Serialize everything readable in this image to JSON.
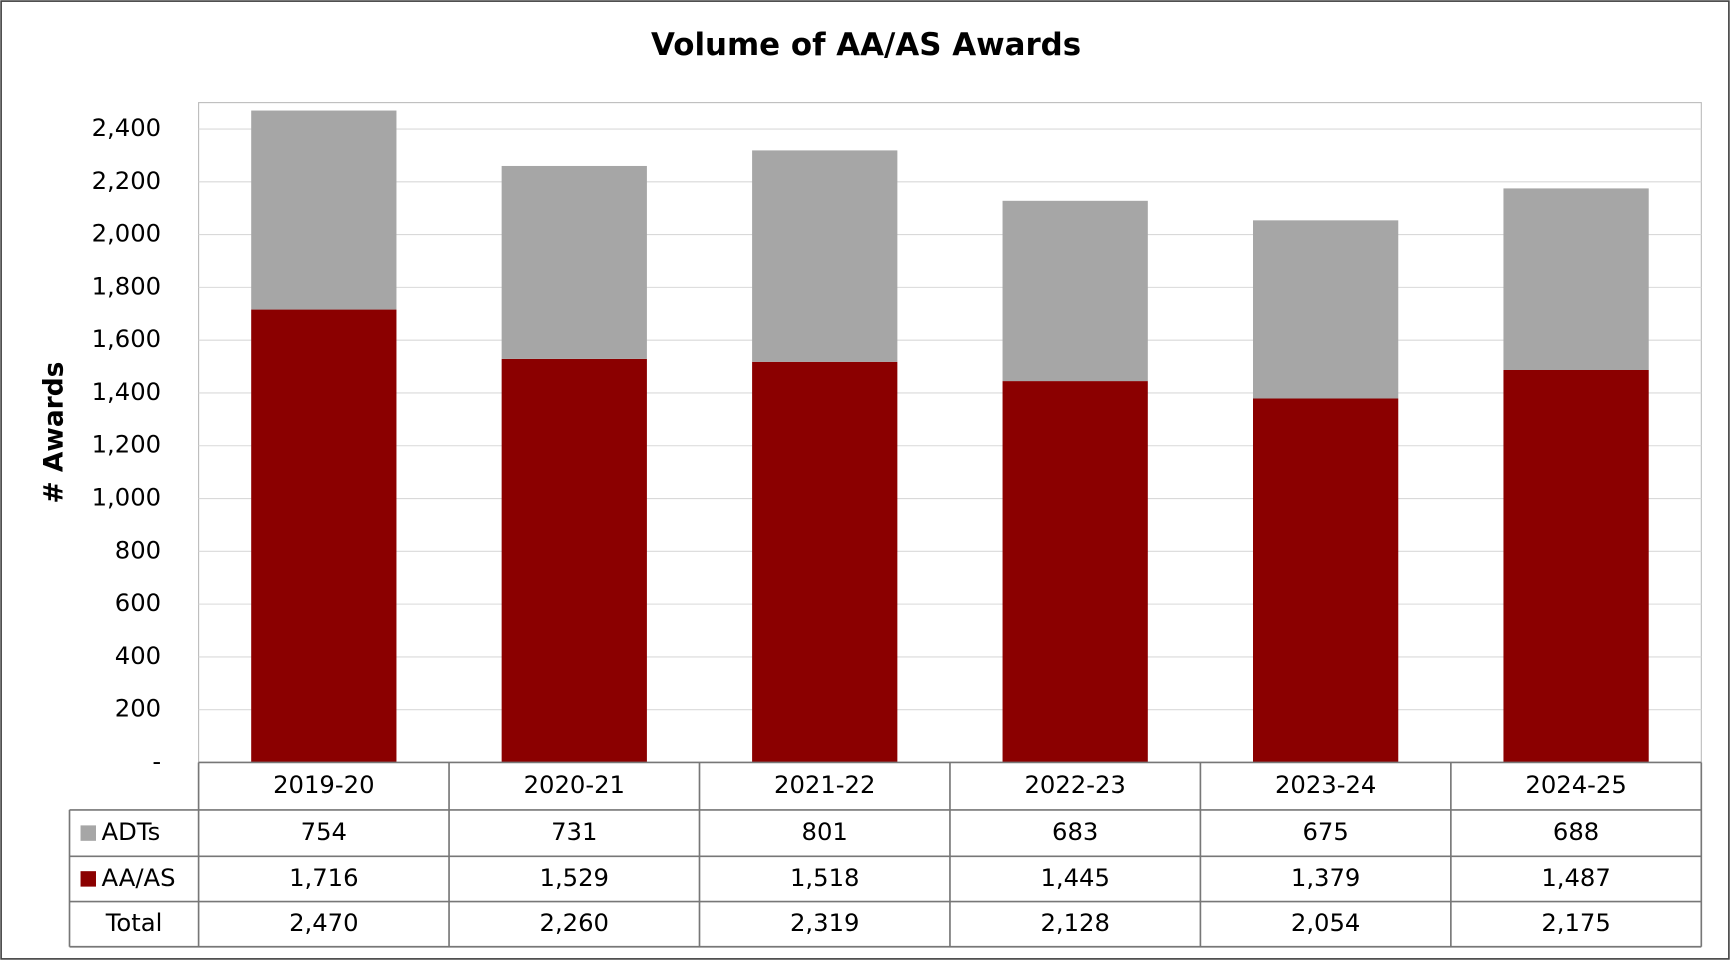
{
  "chart_data": {
    "type": "bar",
    "stacked": true,
    "title": "Volume of AA/AS Awards",
    "ylabel": "# Awards",
    "categories": [
      "2019-20",
      "2020-21",
      "2021-22",
      "2022-23",
      "2023-24",
      "2024-25"
    ],
    "series": [
      {
        "name": "AA/AS",
        "color": "#8b0000",
        "values": [
          1716,
          1529,
          1518,
          1445,
          1379,
          1487
        ],
        "value_labels": [
          "1,716",
          "1,529",
          "1,518",
          "1,445",
          "1,379",
          "1,487"
        ]
      },
      {
        "name": "ADTs",
        "color": "#a6a6a6",
        "values": [
          754,
          731,
          801,
          683,
          675,
          688
        ]
      }
    ],
    "totals": {
      "name": "Total",
      "values": [
        2470,
        2260,
        2319,
        2128,
        2054,
        2175
      ],
      "value_labels": [
        "2,470",
        "2,260",
        "2,319",
        "2,128",
        "2,054",
        "2,175"
      ]
    },
    "ylim": [
      0,
      2500
    ],
    "yticks": [
      {
        "value": 0,
        "label": "-"
      },
      200,
      400,
      600,
      800,
      {
        "value": 1000,
        "label": "1,000"
      },
      {
        "value": 1200,
        "label": "1,200"
      },
      {
        "value": 1400,
        "label": "1,400"
      },
      {
        "value": 1600,
        "label": "1,600"
      },
      {
        "value": 1800,
        "label": "1,800"
      },
      {
        "value": 2000,
        "label": "2,000"
      },
      {
        "value": 2200,
        "label": "2,200"
      },
      {
        "value": 2400,
        "label": "2,400"
      }
    ],
    "grid": true
  }
}
